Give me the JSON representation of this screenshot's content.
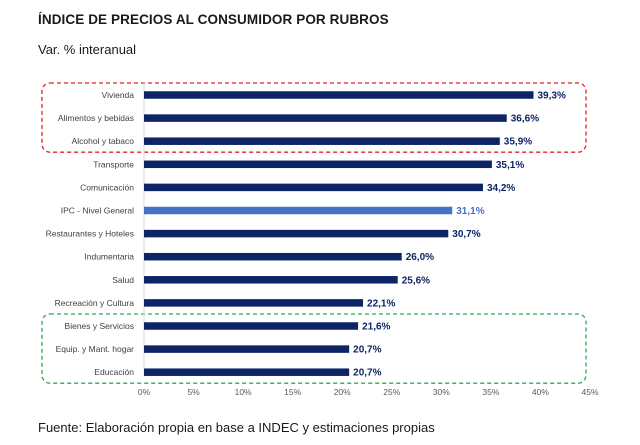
{
  "title": "ÍNDICE DE PRECIOS AL CONSUMIDOR POR RUBROS",
  "subtitle": "Var. % interanual",
  "source": "Fuente: Elaboración propia en base a INDEC y estimaciones propias",
  "colors": {
    "bar": "#0d2466",
    "highlight": "#4472c4",
    "red_box": "#e0202a",
    "green_box": "#2eaa55"
  },
  "chart_data": {
    "type": "bar",
    "orientation": "horizontal",
    "title": "ÍNDICE DE PRECIOS AL CONSUMIDOR POR RUBROS",
    "subtitle": "Var. % interanual",
    "xlabel": "",
    "ylabel": "",
    "xlim": [
      0,
      45
    ],
    "x_ticks": [
      "0%",
      "5%",
      "10%",
      "15%",
      "20%",
      "25%",
      "30%",
      "35%",
      "40%",
      "45%"
    ],
    "categories": [
      "Vivienda",
      "Alimentos y bebidas",
      "Alcohol y tabaco",
      "Transporte",
      "Comunicación",
      "IPC - Nivel General",
      "Restaurantes y Hoteles",
      "Indumentaria",
      "Salud",
      "Recreación y Cultura",
      "Bienes y Servicios",
      "Equip. y Mant. hogar",
      "Educación"
    ],
    "values": [
      39.3,
      36.6,
      35.9,
      35.1,
      34.2,
      31.1,
      30.7,
      26.0,
      25.6,
      22.1,
      21.6,
      20.7,
      20.7
    ],
    "value_labels": [
      "39,3%",
      "36,6%",
      "35,9%",
      "35,1%",
      "34,2%",
      "31,1%",
      "30,7%",
      "26,0%",
      "25,6%",
      "22,1%",
      "21,6%",
      "20,7%",
      "20,7%"
    ],
    "highlighted": [
      "IPC - Nivel General"
    ],
    "groups": [
      {
        "name": "top",
        "style": "red-dashed",
        "members": [
          "Vivienda",
          "Alimentos y bebidas",
          "Alcohol y tabaco"
        ]
      },
      {
        "name": "bottom",
        "style": "green-dashed",
        "members": [
          "Bienes y Servicios",
          "Equip. y Mant. hogar",
          "Educación"
        ]
      }
    ],
    "grid": false,
    "legend": "none"
  }
}
